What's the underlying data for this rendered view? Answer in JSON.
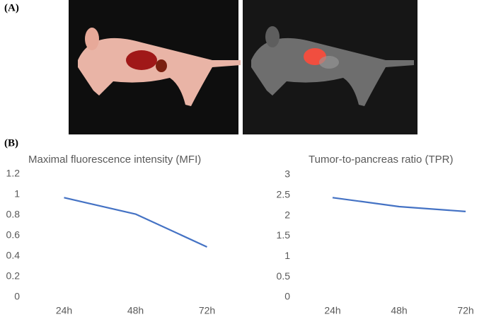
{
  "panels": {
    "a_label": "(A)",
    "b_label": "(B)"
  },
  "chart_data": [
    {
      "type": "line",
      "title": "Maximal fluorescence intensity (MFI)",
      "categories": [
        "24h",
        "48h",
        "72h"
      ],
      "values": [
        0.97,
        0.81,
        0.49
      ],
      "color": "#4472c4",
      "ylim": [
        0,
        1.2
      ],
      "yticks": [
        0,
        0.2,
        0.4,
        0.6,
        0.8,
        1,
        1.2
      ],
      "grid": false
    },
    {
      "type": "line",
      "title": "Tumor-to-pancreas ratio (TPR)",
      "categories": [
        "24h",
        "48h",
        "72h"
      ],
      "values": [
        2.44,
        2.22,
        2.1
      ],
      "color": "#4472c4",
      "ylim": [
        0,
        3
      ],
      "yticks": [
        0,
        0.5,
        1,
        1.5,
        2,
        2.5,
        3
      ],
      "grid": false
    }
  ]
}
